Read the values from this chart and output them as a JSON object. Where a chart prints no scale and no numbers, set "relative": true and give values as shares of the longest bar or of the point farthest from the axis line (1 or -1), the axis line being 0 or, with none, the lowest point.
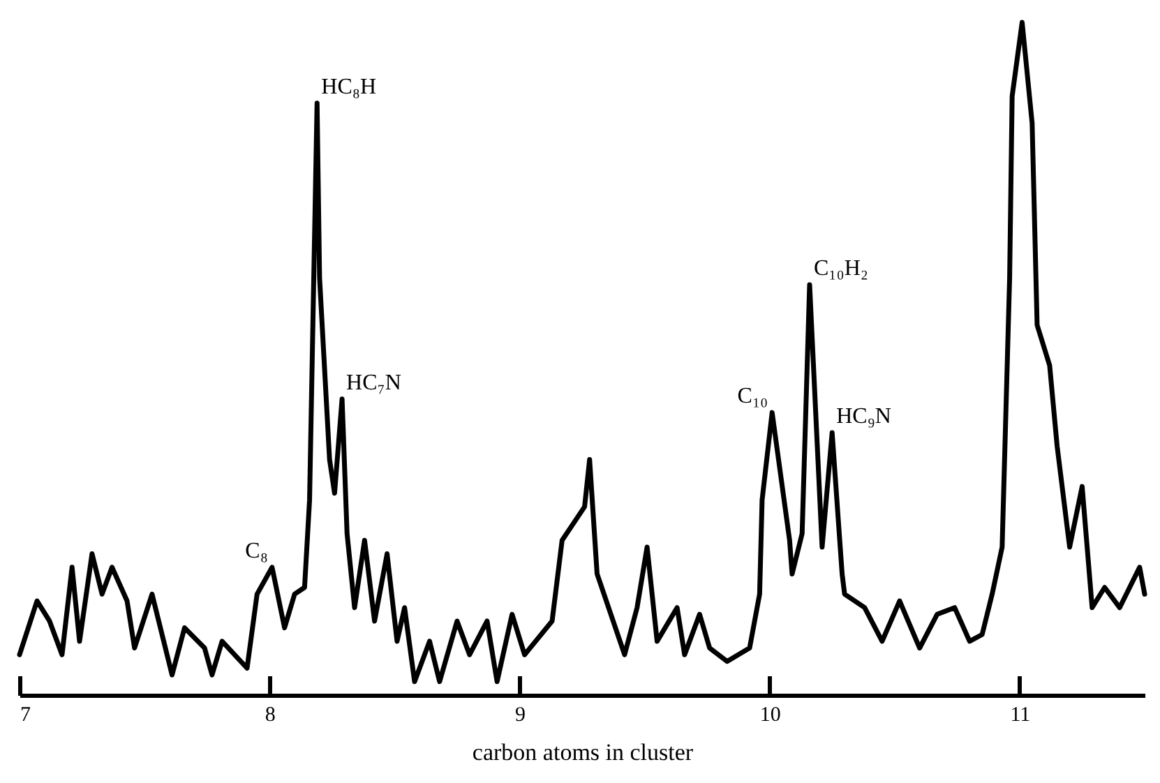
{
  "chart_data": {
    "type": "line",
    "relative": true,
    "xlabel": "carbon atoms in cluster",
    "xlim": [
      7,
      11.5
    ],
    "xticks": [
      7,
      8,
      9,
      10,
      11
    ],
    "line_style": "solid",
    "annotations": [
      {
        "text": "C₈",
        "x": 8.01,
        "y": 0.19
      },
      {
        "text": "HC₈H",
        "x": 8.19,
        "y": 0.88
      },
      {
        "text": "HC₇N",
        "x": 8.29,
        "y": 0.44
      },
      {
        "text": "C₁₀",
        "x": 10.01,
        "y": 0.42
      },
      {
        "text": "C₁₀H₂",
        "x": 10.16,
        "y": 0.61
      },
      {
        "text": "HC₉N",
        "x": 10.25,
        "y": 0.39
      }
    ],
    "series": [
      {
        "color": "#000000",
        "x": [
          7.0,
          7.07,
          7.12,
          7.17,
          7.21,
          7.24,
          7.29,
          7.33,
          7.37,
          7.43,
          7.46,
          7.53,
          7.61,
          7.66,
          7.74,
          7.77,
          7.81,
          7.91,
          7.95,
          8.01,
          8.06,
          8.1,
          8.14,
          8.16,
          8.19,
          8.2,
          8.24,
          8.26,
          8.29,
          8.31,
          8.34,
          8.38,
          8.42,
          8.47,
          8.51,
          8.54,
          8.58,
          8.64,
          8.68,
          8.75,
          8.8,
          8.87,
          8.91,
          8.97,
          9.02,
          9.13,
          9.17,
          9.26,
          9.28,
          9.31,
          9.42,
          9.47,
          9.51,
          9.55,
          9.63,
          9.66,
          9.72,
          9.76,
          9.83,
          9.92,
          9.96,
          9.97,
          10.01,
          10.08,
          10.09,
          10.13,
          10.16,
          10.21,
          10.25,
          10.29,
          10.3,
          10.38,
          10.45,
          10.52,
          10.6,
          10.67,
          10.74,
          10.8,
          10.85,
          10.89,
          10.93,
          10.96,
          10.97,
          11.01,
          11.05,
          11.07,
          11.12,
          11.15,
          11.2,
          11.25,
          11.29,
          11.34,
          11.4,
          11.48,
          11.5
        ],
        "values": [
          0.06,
          0.14,
          0.11,
          0.06,
          0.19,
          0.08,
          0.21,
          0.15,
          0.19,
          0.14,
          0.07,
          0.15,
          0.03,
          0.1,
          0.07,
          0.03,
          0.08,
          0.04,
          0.15,
          0.19,
          0.1,
          0.15,
          0.16,
          0.29,
          0.88,
          0.62,
          0.35,
          0.3,
          0.44,
          0.24,
          0.13,
          0.23,
          0.11,
          0.21,
          0.08,
          0.13,
          0.02,
          0.08,
          0.02,
          0.11,
          0.06,
          0.11,
          0.02,
          0.12,
          0.06,
          0.11,
          0.23,
          0.28,
          0.35,
          0.18,
          0.06,
          0.13,
          0.22,
          0.08,
          0.13,
          0.06,
          0.12,
          0.07,
          0.05,
          0.07,
          0.15,
          0.29,
          0.42,
          0.23,
          0.18,
          0.24,
          0.61,
          0.22,
          0.39,
          0.18,
          0.15,
          0.13,
          0.08,
          0.14,
          0.07,
          0.12,
          0.13,
          0.08,
          0.09,
          0.15,
          0.22,
          0.62,
          0.89,
          1.0,
          0.85,
          0.55,
          0.49,
          0.37,
          0.22,
          0.31,
          0.13,
          0.16,
          0.13,
          0.19,
          0.15
        ]
      }
    ]
  }
}
